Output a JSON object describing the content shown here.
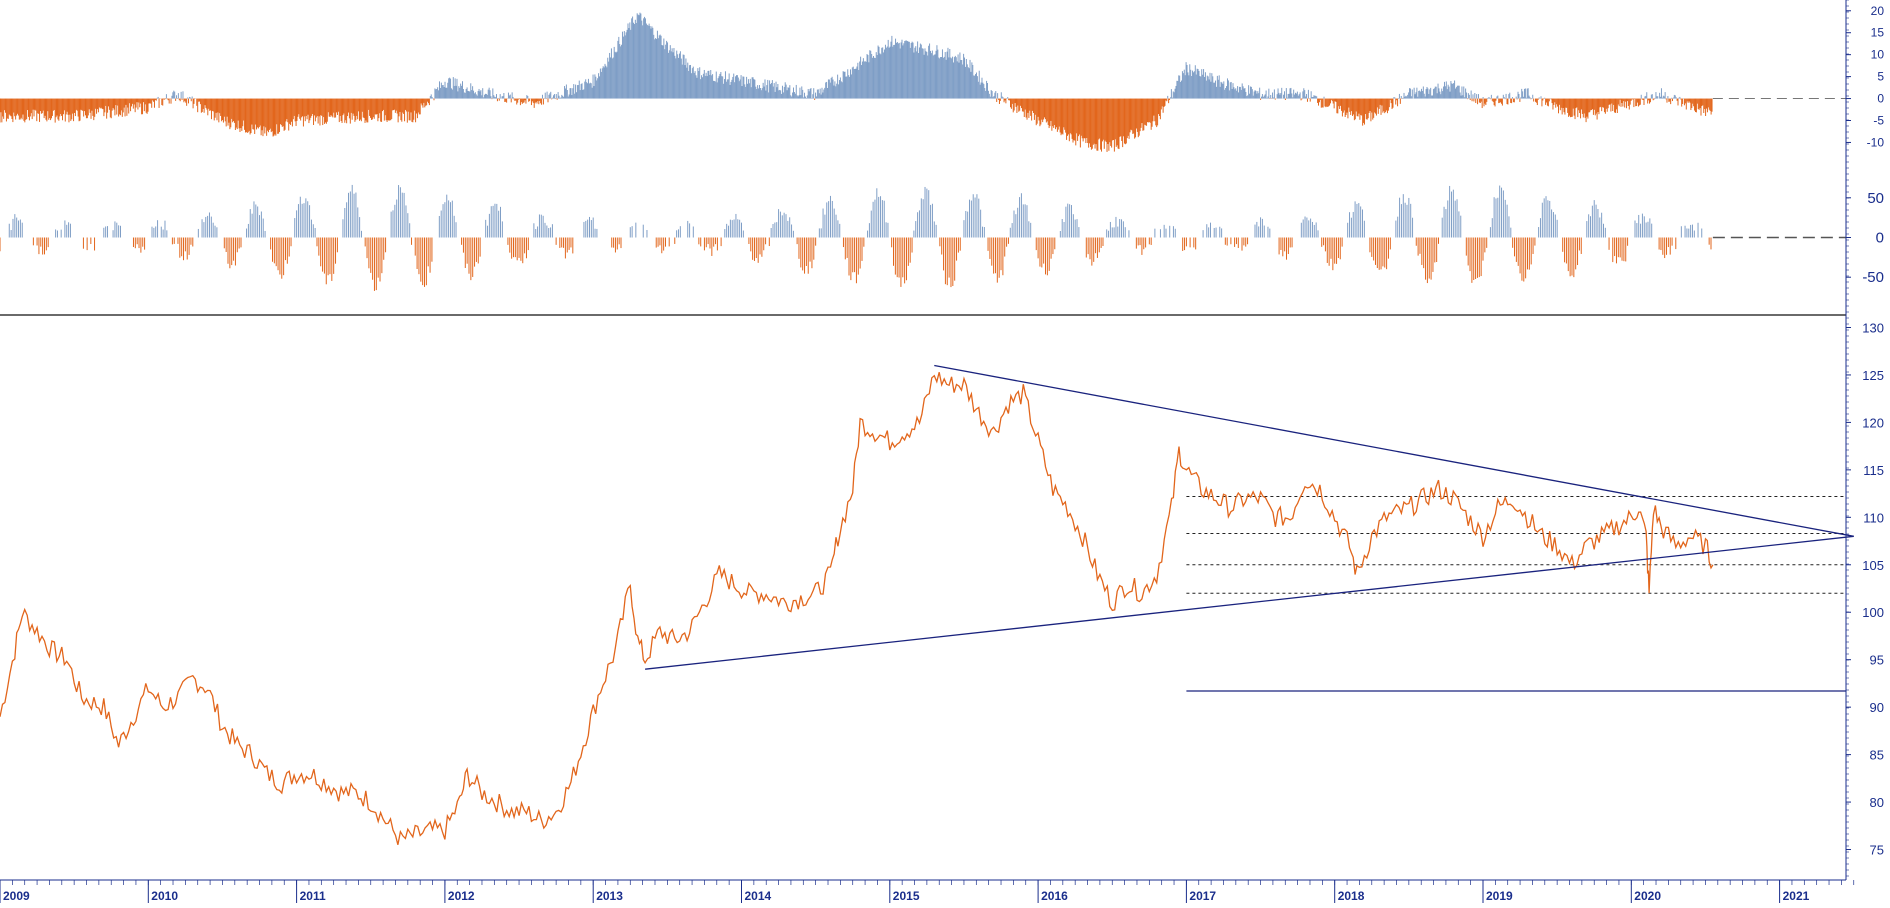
{
  "colors": {
    "background": "#ffffff",
    "price_line": "#e2661c",
    "negative_bars": "#e2661c",
    "positive_bars": "#7f9ec6",
    "axis_text": "#1a2e8c",
    "trendline": "#1a237e",
    "separator": "#111111",
    "dashed_zero": "#555555"
  },
  "chart_data": [
    {
      "type": "bar",
      "panel": "top-oscillator",
      "y_ticks": [
        "20",
        "15",
        "10",
        "5",
        "0",
        "-5",
        "-10"
      ],
      "ylim": [
        -14,
        22
      ],
      "zero_line": "dashed",
      "series": [
        {
          "values_by_year": {
            "2009": -4,
            "2009.5": -4,
            "2010": -2,
            "2010.2": 1,
            "2010.5": -5,
            "2010.8": -8,
            "2011": -5,
            "2011.5": -4,
            "2011.8": -4,
            "2012": 4,
            "2012.3": 1,
            "2012.6": -1,
            "2013": 4,
            "2013.2": 14,
            "2013.3": 19,
            "2013.5": 12,
            "2013.7": 6,
            "2014": 4,
            "2014.5": 1,
            "2014.8": 8,
            "2015": 13,
            "2015.3": 11,
            "2015.5": 9,
            "2015.7": 1,
            "2016": -5,
            "2016.3": -10,
            "2016.5": -11,
            "2016.8": -5,
            "2017": 7,
            "2017.2": 4,
            "2017.5": 1,
            "2017.8": 1,
            "2018": -2,
            "2018.2": -5,
            "2018.5": 1,
            "2018.8": 3,
            "2019": -1,
            "2019.3": 1,
            "2019.5": -2,
            "2019.7": -4,
            "2020": -1,
            "2020.2": 1,
            "2020.5": -3
          }
        }
      ]
    },
    {
      "type": "bar",
      "panel": "middle-oscillator",
      "y_ticks": [
        "50",
        "0",
        "-50"
      ],
      "ylim": [
        -85,
        85
      ],
      "zero_line": "dashed"
    },
    {
      "type": "line",
      "panel": "price",
      "x_tick_labels": [
        "2009",
        "2010",
        "2011",
        "2012",
        "2013",
        "2014",
        "2015",
        "2016",
        "2017",
        "2018",
        "2019",
        "2020",
        "2021"
      ],
      "y_tick_labels": [
        "130",
        "125",
        "120",
        "115",
        "110",
        "105",
        "100",
        "95",
        "90",
        "85",
        "80",
        "75"
      ],
      "ylim": [
        72,
        131
      ],
      "xlim": [
        2009.0,
        2021.6
      ],
      "series": [
        {
          "points": [
            [
              2009.0,
              89
            ],
            [
              2009.1,
              96
            ],
            [
              2009.15,
              100
            ],
            [
              2009.25,
              98
            ],
            [
              2009.35,
              96
            ],
            [
              2009.45,
              95
            ],
            [
              2009.55,
              91
            ],
            [
              2009.7,
              90
            ],
            [
              2009.8,
              86
            ],
            [
              2009.9,
              89
            ],
            [
              2010.0,
              92
            ],
            [
              2010.1,
              90
            ],
            [
              2010.2,
              91
            ],
            [
              2010.3,
              93
            ],
            [
              2010.4,
              92
            ],
            [
              2010.5,
              88
            ],
            [
              2010.6,
              86
            ],
            [
              2010.7,
              85
            ],
            [
              2010.8,
              83
            ],
            [
              2010.9,
              82
            ],
            [
              2011.0,
              83
            ],
            [
              2011.1,
              83
            ],
            [
              2011.2,
              82
            ],
            [
              2011.3,
              81
            ],
            [
              2011.4,
              81
            ],
            [
              2011.5,
              80
            ],
            [
              2011.6,
              78
            ],
            [
              2011.7,
              76
            ],
            [
              2011.8,
              76.5
            ],
            [
              2011.9,
              77
            ],
            [
              2012.0,
              77
            ],
            [
              2012.1,
              80
            ],
            [
              2012.15,
              83
            ],
            [
              2012.25,
              81
            ],
            [
              2012.35,
              80
            ],
            [
              2012.45,
              79
            ],
            [
              2012.55,
              79
            ],
            [
              2012.65,
              78
            ],
            [
              2012.75,
              79
            ],
            [
              2012.85,
              82
            ],
            [
              2012.95,
              87
            ],
            [
              2013.05,
              92
            ],
            [
              2013.15,
              96
            ],
            [
              2013.25,
              103
            ],
            [
              2013.3,
              97
            ],
            [
              2013.35,
              95
            ],
            [
              2013.45,
              98
            ],
            [
              2013.55,
              97
            ],
            [
              2013.65,
              98
            ],
            [
              2013.75,
              101
            ],
            [
              2013.85,
              104
            ],
            [
              2013.95,
              103
            ],
            [
              2014.05,
              102
            ],
            [
              2014.15,
              102
            ],
            [
              2014.3,
              101
            ],
            [
              2014.5,
              102
            ],
            [
              2014.6,
              104
            ],
            [
              2014.65,
              108
            ],
            [
              2014.75,
              113
            ],
            [
              2014.8,
              120
            ],
            [
              2014.9,
              119
            ],
            [
              2015.0,
              118
            ],
            [
              2015.1,
              119
            ],
            [
              2015.2,
              120
            ],
            [
              2015.3,
              125
            ],
            [
              2015.4,
              124
            ],
            [
              2015.5,
              124
            ],
            [
              2015.6,
              121
            ],
            [
              2015.7,
              119
            ],
            [
              2015.8,
              122
            ],
            [
              2015.9,
              123
            ],
            [
              2016.0,
              118
            ],
            [
              2016.1,
              113
            ],
            [
              2016.2,
              111
            ],
            [
              2016.3,
              108
            ],
            [
              2016.4,
              104
            ],
            [
              2016.5,
              101
            ],
            [
              2016.6,
              103
            ],
            [
              2016.7,
              102
            ],
            [
              2016.8,
              104
            ],
            [
              2016.9,
              111
            ],
            [
              2016.95,
              117
            ],
            [
              2017.0,
              115
            ],
            [
              2017.1,
              113
            ],
            [
              2017.2,
              112
            ],
            [
              2017.3,
              111
            ],
            [
              2017.4,
              112
            ],
            [
              2017.5,
              112
            ],
            [
              2017.6,
              110
            ],
            [
              2017.7,
              110
            ],
            [
              2017.8,
              114
            ],
            [
              2017.9,
              113
            ],
            [
              2018.0,
              110
            ],
            [
              2018.1,
              107
            ],
            [
              2018.15,
              104
            ],
            [
              2018.25,
              108
            ],
            [
              2018.35,
              110
            ],
            [
              2018.5,
              111
            ],
            [
              2018.6,
              112
            ],
            [
              2018.7,
              113
            ],
            [
              2018.8,
              112
            ],
            [
              2018.9,
              110
            ],
            [
              2019.0,
              108
            ],
            [
              2019.1,
              111
            ],
            [
              2019.2,
              112
            ],
            [
              2019.3,
              110
            ],
            [
              2019.4,
              108
            ],
            [
              2019.5,
              107
            ],
            [
              2019.6,
              105
            ],
            [
              2019.7,
              107
            ],
            [
              2019.8,
              108
            ],
            [
              2019.9,
              109
            ],
            [
              2020.0,
              110
            ],
            [
              2020.05,
              111
            ],
            [
              2020.1,
              108
            ],
            [
              2020.12,
              102
            ],
            [
              2020.15,
              111
            ],
            [
              2020.2,
              109
            ],
            [
              2020.3,
              107
            ],
            [
              2020.4,
              108
            ],
            [
              2020.5,
              107
            ],
            [
              2020.55,
              105
            ]
          ]
        }
      ],
      "trendlines": [
        {
          "from": [
            2013.35,
            94
          ],
          "to": [
            2021.5,
            108
          ]
        },
        {
          "from": [
            2015.3,
            126
          ],
          "to": [
            2021.5,
            108
          ]
        }
      ],
      "horizontal_levels": [
        {
          "y": 112.2,
          "from_x": 2017.0,
          "style": "dotted"
        },
        {
          "y": 108.3,
          "from_x": 2017.0,
          "style": "dotted"
        },
        {
          "y": 105.0,
          "from_x": 2017.0,
          "style": "dotted"
        },
        {
          "y": 102.0,
          "from_x": 2017.0,
          "style": "dotted"
        },
        {
          "y": 91.7,
          "from_x": 2017.0,
          "style": "solid"
        }
      ]
    }
  ]
}
